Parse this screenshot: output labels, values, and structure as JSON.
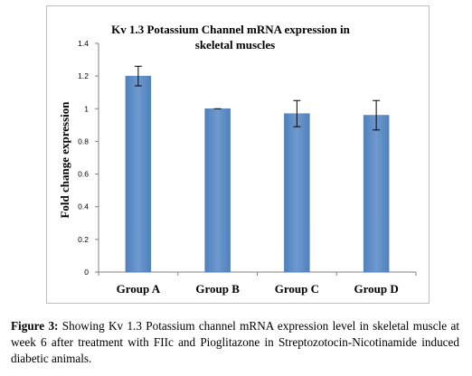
{
  "chart_data": {
    "type": "bar",
    "title_lines": [
      "Kv 1.3 Potassium Channel mRNA expression in",
      "skeletal muscles"
    ],
    "xlabel": "",
    "ylabel": "Fold change expression",
    "categories": [
      "Group A",
      "Group B",
      "Group C",
      "Group D"
    ],
    "values": [
      1.2,
      1.0,
      0.97,
      0.96
    ],
    "error": [
      0.06,
      0.0,
      0.08,
      0.09
    ],
    "ylim": [
      0,
      1.4
    ],
    "yticks": [
      0,
      0.2,
      0.4,
      0.6,
      0.8,
      1,
      1.2,
      1.4
    ],
    "ytick_labels": [
      "0",
      "0.2",
      "0.4",
      "0.6",
      "0.8",
      "1",
      "1.2",
      "1.4"
    ],
    "grid": false,
    "bar_color": "#4f81bd",
    "bar_highlight_color": "#6f99cf",
    "error_bar_color": "#000000"
  },
  "caption": {
    "label": "Figure 3:",
    "text": " Showing Kv 1.3 Potassium channel mRNA expression level in skeletal muscle at week 6 after treatment with FIIc and Pioglitazone in Streptozotocin-Nicotinamide induced diabetic animals."
  }
}
